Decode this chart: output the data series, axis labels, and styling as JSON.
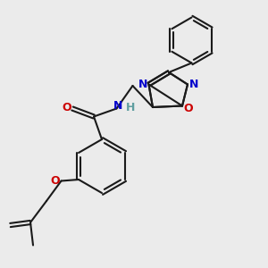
{
  "bg_color": "#ebebeb",
  "bond_color": "#1a1a1a",
  "N_color": "#0000cc",
  "O_color": "#cc0000",
  "H_color": "#5f9ea0",
  "line_width": 1.5,
  "figsize": [
    3.0,
    3.0
  ],
  "dpi": 100,
  "xlim": [
    0,
    10
  ],
  "ylim": [
    0,
    10
  ]
}
